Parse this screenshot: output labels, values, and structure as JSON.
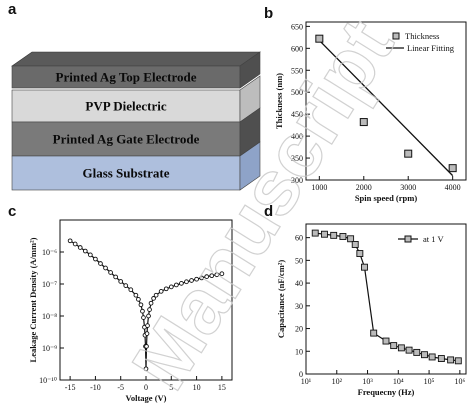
{
  "panels": {
    "a": {
      "letter": "a",
      "layers": [
        {
          "label": "Printed Ag Top Electrode",
          "color": "#6a6a6a"
        },
        {
          "label": "PVP Dielectric",
          "color": "#d9d9d9"
        },
        {
          "label": "Printed Ag Gate Electrode",
          "color": "#7a7a7a"
        },
        {
          "label": "Glass Substrate",
          "color": "#aebfdd"
        }
      ]
    },
    "b": {
      "letter": "b"
    },
    "c": {
      "letter": "c"
    },
    "d": {
      "letter": "d"
    }
  },
  "watermark": "Manuscript",
  "chart_data": [
    {
      "panel": "b",
      "type": "scatter",
      "xlabel": "Spin speed (rpm)",
      "ylabel": "Thickness (nm)",
      "xlim": [
        700,
        4300
      ],
      "ylim": [
        300,
        660
      ],
      "x_ticks": [
        1000,
        2000,
        3000,
        4000
      ],
      "y_ticks": [
        300,
        350,
        400,
        450,
        500,
        550,
        600,
        650
      ],
      "legend_position": "top-right",
      "series": [
        {
          "name": "Thickness",
          "marker": "square",
          "x": [
            1000,
            2000,
            3000,
            4000
          ],
          "y": [
            622,
            432,
            360,
            327
          ]
        },
        {
          "name": "Linear Fitting",
          "style": "line",
          "x": [
            1000,
            4000
          ],
          "y": [
            618,
            310
          ]
        }
      ]
    },
    {
      "panel": "c",
      "type": "line",
      "xlabel": "Voltage (V)",
      "ylabel": "Leakage Current Density (A/mm²)",
      "xlim": [
        -17,
        17
      ],
      "y_scale": "log",
      "ylim_exp": [
        -10,
        -5
      ],
      "x_ticks": [
        -15,
        -10,
        -5,
        0,
        5,
        10,
        15
      ],
      "y_tick_labels": [
        "10⁻¹⁰",
        "10⁻⁹",
        "10⁻⁸",
        "10⁻⁷",
        "10⁻⁶"
      ],
      "y_tick_exps": [
        -10,
        -9,
        -8,
        -7,
        -6
      ],
      "series": [
        {
          "name": "J-V",
          "marker": "circle",
          "x": [
            -15,
            -14,
            -13,
            -12,
            -11,
            -10,
            -9,
            -8,
            -7,
            -6,
            -5,
            -4,
            -3,
            -2,
            -1.5,
            -1,
            -0.7,
            -0.5,
            -0.3,
            -0.2,
            -0.1,
            0,
            0.1,
            0.2,
            0.3,
            0.5,
            0.7,
            1,
            1.5,
            2,
            3,
            4,
            5,
            6,
            7,
            8,
            9,
            10,
            11,
            12,
            13,
            14,
            15
          ],
          "log_y": [
            -5.65,
            -5.75,
            -5.86,
            -5.97,
            -6.09,
            -6.22,
            -6.36,
            -6.5,
            -6.64,
            -6.78,
            -6.92,
            -7.05,
            -7.18,
            -7.35,
            -7.48,
            -7.65,
            -7.85,
            -8.05,
            -8.35,
            -8.6,
            -8.95,
            -9.65,
            -8.95,
            -8.55,
            -8.3,
            -8.0,
            -7.8,
            -7.6,
            -7.45,
            -7.35,
            -7.23,
            -7.15,
            -7.09,
            -7.03,
            -6.98,
            -6.93,
            -6.89,
            -6.85,
            -6.81,
            -6.77,
            -6.74,
            -6.71,
            -6.68
          ]
        }
      ]
    },
    {
      "panel": "d",
      "type": "line",
      "xlabel": "Frequecny (Hz)",
      "ylabel": "Capacitance (nF/cm²)",
      "x_scale": "log",
      "xlim_exp": [
        1,
        6.2
      ],
      "ylim": [
        0,
        66
      ],
      "x_tick_labels": [
        "10¹",
        "10²",
        "10³",
        "10⁴",
        "10⁵",
        "10⁶"
      ],
      "x_tick_exps": [
        1,
        2,
        3,
        4,
        5,
        6
      ],
      "y_ticks": [
        0,
        10,
        20,
        30,
        40,
        50,
        60
      ],
      "legend_position": "top-right",
      "series": [
        {
          "name": "at 1 V",
          "marker": "square",
          "log_x": [
            1.3,
            1.6,
            1.9,
            2.2,
            2.45,
            2.6,
            2.75,
            2.9,
            3.2,
            3.6,
            3.85,
            4.1,
            4.35,
            4.6,
            4.85,
            5.1,
            5.4,
            5.7,
            5.95
          ],
          "y": [
            62,
            61.5,
            61,
            60.5,
            59.5,
            57,
            53,
            47,
            18,
            14.5,
            12.5,
            11.5,
            10.5,
            9.5,
            8.5,
            7.5,
            6.8,
            6.2,
            5.8
          ]
        }
      ]
    }
  ]
}
